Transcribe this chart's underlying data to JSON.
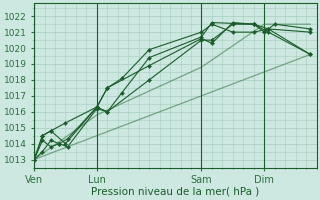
{
  "bg_color": "#cce8e0",
  "grid_color": "#a8ccbf",
  "line_color": "#2d6e3e",
  "dark_line_color": "#1a5c2a",
  "ylabel": "Pression niveau de la mer( hPa )",
  "ylim": [
    1012.5,
    1022.8
  ],
  "yticks": [
    1013,
    1014,
    1015,
    1016,
    1017,
    1018,
    1019,
    1020,
    1021,
    1022
  ],
  "xtick_labels": [
    "Ven",
    "Lun",
    "Sam",
    "Dim"
  ],
  "xtick_positions": [
    0,
    3,
    8,
    11
  ],
  "vlines": [
    0,
    3,
    8,
    11
  ],
  "xlim": [
    0,
    13.5
  ],
  "series": [
    {
      "x": [
        0,
        0.4,
        0.8,
        1.2,
        1.6,
        3.0,
        3.5,
        5.5,
        8.0,
        8.5,
        9.5,
        10.5,
        11.2,
        13.2
      ],
      "y": [
        1013.0,
        1013.5,
        1014.2,
        1014.0,
        1013.8,
        1016.2,
        1016.0,
        1018.0,
        1020.5,
        1020.5,
        1021.5,
        1021.5,
        1021.0,
        1019.6
      ]
    },
    {
      "x": [
        0,
        0.4,
        0.8,
        1.2,
        1.6,
        3.0,
        3.5,
        5.5,
        8.0,
        8.5,
        9.5,
        10.5,
        11.2,
        13.2
      ],
      "y": [
        1013.0,
        1014.2,
        1013.8,
        1014.0,
        1014.3,
        1016.3,
        1017.5,
        1018.9,
        1020.6,
        1020.3,
        1021.6,
        1021.5,
        1021.2,
        1021.0
      ]
    },
    {
      "x": [
        0,
        0.4,
        0.8,
        1.5,
        3.0,
        3.5,
        4.2,
        5.5,
        8.0,
        8.5,
        10.5,
        11.0,
        11.5,
        13.2
      ],
      "y": [
        1013.0,
        1014.5,
        1014.8,
        1014.0,
        1016.3,
        1016.0,
        1017.2,
        1019.4,
        1020.7,
        1021.6,
        1021.5,
        1021.0,
        1021.5,
        1021.2
      ]
    },
    {
      "x": [
        0,
        0.4,
        0.8,
        1.5,
        3.0,
        3.5,
        4.2,
        5.5,
        8.0,
        8.5,
        9.5,
        10.5,
        11.2,
        13.2
      ],
      "y": [
        1013.0,
        1014.5,
        1014.8,
        1015.3,
        1016.3,
        1017.5,
        1018.1,
        1019.9,
        1021.0,
        1021.5,
        1021.0,
        1021.0,
        1021.2,
        1019.6
      ]
    }
  ],
  "smooth_line": {
    "x": [
      0,
      13.2
    ],
    "y": [
      1013.0,
      1019.6
    ]
  },
  "smooth_line2": {
    "x": [
      0,
      3.0,
      8.0,
      11.0,
      13.2
    ],
    "y": [
      1013.0,
      1015.8,
      1018.8,
      1021.5,
      1021.5
    ]
  }
}
